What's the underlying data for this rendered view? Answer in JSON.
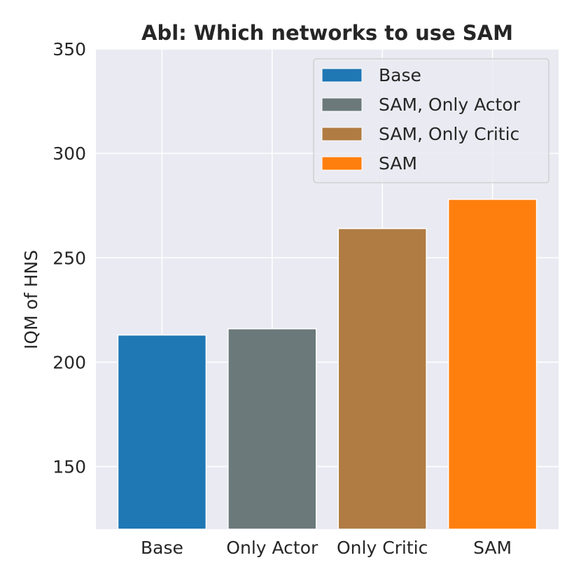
{
  "chart_data": {
    "type": "bar",
    "title": "Abl: Which networks to use SAM",
    "xlabel": "",
    "ylabel": "IQM of HNS",
    "categories": [
      "Base",
      "Only Actor",
      "Only Critic",
      "SAM"
    ],
    "values": [
      213,
      216,
      264,
      278
    ],
    "colors": [
      "#1f77b4",
      "#6b797b",
      "#b07c44",
      "#ff7f0e"
    ],
    "ylim": [
      120,
      350
    ],
    "yticks": [
      150,
      200,
      250,
      300,
      350
    ],
    "grid": true,
    "legend": {
      "placement": "upper right",
      "entries": [
        "Base",
        "SAM, Only Actor",
        "SAM, Only Critic",
        "SAM"
      ]
    }
  }
}
